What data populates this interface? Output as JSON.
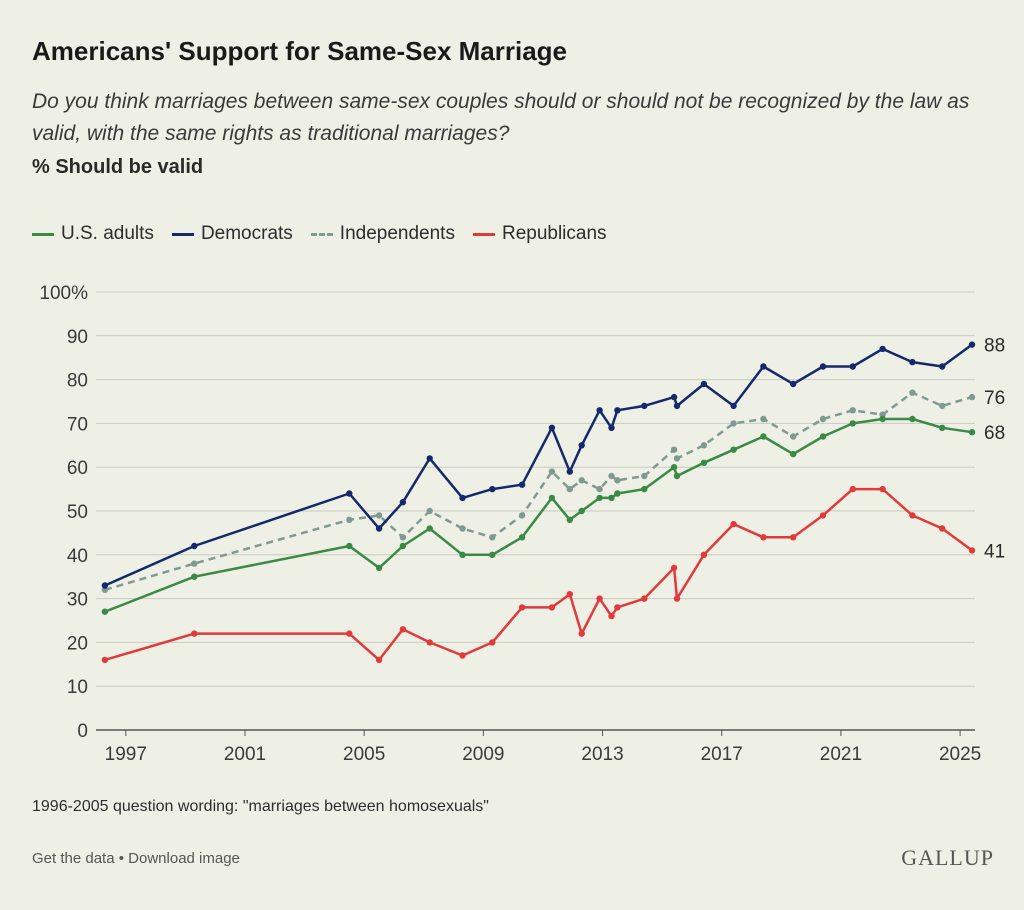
{
  "title": "Americans' Support for Same-Sex Marriage",
  "subtitle": "Do you think marriages between same-sex couples should or should not be recognized by the law as valid, with the same rights as traditional marriages?",
  "measure": "% Should be valid",
  "note": "1996-2005 question wording: \"marriages between homosexuals\"",
  "footer": {
    "get_data": "Get the data",
    "separator": "•",
    "download": "Download image"
  },
  "brand": "GALLUP",
  "chart_data": {
    "type": "line",
    "ylim": [
      0,
      100
    ],
    "y_ticks": [
      "0",
      "10",
      "20",
      "30",
      "40",
      "50",
      "60",
      "70",
      "80",
      "90",
      "100%"
    ],
    "x_ticks": [
      "1997",
      "2001",
      "2005",
      "2009",
      "2013",
      "2017",
      "2021",
      "2025"
    ],
    "xlim": [
      1996,
      2025.5
    ],
    "grid": true,
    "legend_position": "top-left",
    "series": [
      {
        "name": "U.S. adults",
        "color": "#3a8a45",
        "dashed": false,
        "end_label": "68",
        "points": [
          [
            1996.3,
            27
          ],
          [
            1999.3,
            35
          ],
          [
            2004.5,
            42
          ],
          [
            2005.5,
            37
          ],
          [
            2006.3,
            42
          ],
          [
            2007.2,
            46
          ],
          [
            2008.3,
            40
          ],
          [
            2009.3,
            40
          ],
          [
            2010.3,
            44
          ],
          [
            2011.3,
            53
          ],
          [
            2011.9,
            48
          ],
          [
            2012.3,
            50
          ],
          [
            2012.9,
            53
          ],
          [
            2013.3,
            53
          ],
          [
            2013.5,
            54
          ],
          [
            2014.4,
            55
          ],
          [
            2015.4,
            60
          ],
          [
            2015.5,
            58
          ],
          [
            2016.4,
            61
          ],
          [
            2017.4,
            64
          ],
          [
            2018.4,
            67
          ],
          [
            2019.4,
            63
          ],
          [
            2020.4,
            67
          ],
          [
            2021.4,
            70
          ],
          [
            2022.4,
            71
          ],
          [
            2023.4,
            71
          ],
          [
            2024.4,
            69
          ],
          [
            2025.4,
            68
          ]
        ]
      },
      {
        "name": "Democrats",
        "color": "#13296b",
        "dashed": false,
        "end_label": "88",
        "points": [
          [
            1996.3,
            33
          ],
          [
            1999.3,
            42
          ],
          [
            2004.5,
            54
          ],
          [
            2005.5,
            46
          ],
          [
            2006.3,
            52
          ],
          [
            2007.2,
            62
          ],
          [
            2008.3,
            53
          ],
          [
            2009.3,
            55
          ],
          [
            2010.3,
            56
          ],
          [
            2011.3,
            69
          ],
          [
            2011.9,
            59
          ],
          [
            2012.3,
            65
          ],
          [
            2012.9,
            73
          ],
          [
            2013.3,
            69
          ],
          [
            2013.5,
            73
          ],
          [
            2014.4,
            74
          ],
          [
            2015.4,
            76
          ],
          [
            2015.5,
            74
          ],
          [
            2016.4,
            79
          ],
          [
            2017.4,
            74
          ],
          [
            2018.4,
            83
          ],
          [
            2019.4,
            79
          ],
          [
            2020.4,
            83
          ],
          [
            2021.4,
            83
          ],
          [
            2022.4,
            87
          ],
          [
            2023.4,
            84
          ],
          [
            2024.4,
            83
          ],
          [
            2025.4,
            88
          ]
        ]
      },
      {
        "name": "Independents",
        "color": "#7e9a91",
        "dashed": true,
        "end_label": "76",
        "points": [
          [
            1996.3,
            32
          ],
          [
            1999.3,
            38
          ],
          [
            2004.5,
            48
          ],
          [
            2005.5,
            49
          ],
          [
            2006.3,
            44
          ],
          [
            2007.2,
            50
          ],
          [
            2008.3,
            46
          ],
          [
            2009.3,
            44
          ],
          [
            2010.3,
            49
          ],
          [
            2011.3,
            59
          ],
          [
            2011.9,
            55
          ],
          [
            2012.3,
            57
          ],
          [
            2012.9,
            55
          ],
          [
            2013.3,
            58
          ],
          [
            2013.5,
            57
          ],
          [
            2014.4,
            58
          ],
          [
            2015.4,
            64
          ],
          [
            2015.5,
            62
          ],
          [
            2016.4,
            65
          ],
          [
            2017.4,
            70
          ],
          [
            2018.4,
            71
          ],
          [
            2019.4,
            67
          ],
          [
            2020.4,
            71
          ],
          [
            2021.4,
            73
          ],
          [
            2022.4,
            72
          ],
          [
            2023.4,
            77
          ],
          [
            2024.4,
            74
          ],
          [
            2025.4,
            76
          ]
        ]
      },
      {
        "name": "Republicans",
        "color": "#e03a3a",
        "dashed": false,
        "end_label": "41",
        "points": [
          [
            1996.3,
            16
          ],
          [
            1999.3,
            22
          ],
          [
            2004.5,
            22
          ],
          [
            2005.5,
            16
          ],
          [
            2006.3,
            23
          ],
          [
            2007.2,
            20
          ],
          [
            2008.3,
            17
          ],
          [
            2009.3,
            20
          ],
          [
            2010.3,
            28
          ],
          [
            2011.3,
            28
          ],
          [
            2011.9,
            31
          ],
          [
            2012.3,
            22
          ],
          [
            2012.9,
            30
          ],
          [
            2013.3,
            26
          ],
          [
            2013.5,
            28
          ],
          [
            2014.4,
            30
          ],
          [
            2015.4,
            37
          ],
          [
            2015.5,
            30
          ],
          [
            2016.4,
            40
          ],
          [
            2017.4,
            47
          ],
          [
            2018.4,
            44
          ],
          [
            2019.4,
            44
          ],
          [
            2020.4,
            49
          ],
          [
            2021.4,
            55
          ],
          [
            2022.4,
            55
          ],
          [
            2023.4,
            49
          ],
          [
            2024.4,
            46
          ],
          [
            2025.4,
            41
          ]
        ]
      }
    ]
  }
}
